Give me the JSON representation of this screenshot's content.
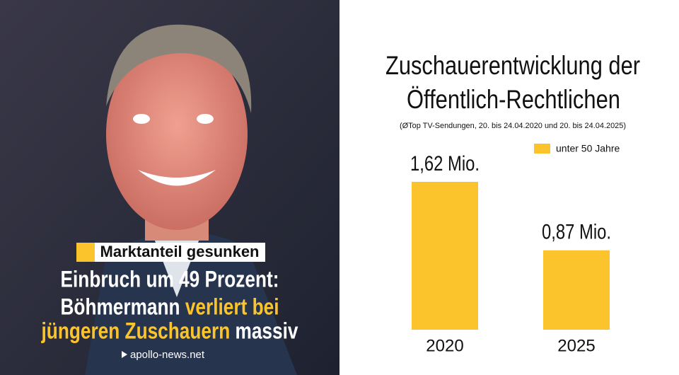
{
  "left_panel": {
    "badge": "Marktanteil gesunken",
    "headline": [
      [
        {
          "text": "Einbruch um 49 Prozent:",
          "highlight": false
        }
      ],
      [
        {
          "text": "Böhmermann ",
          "highlight": false
        },
        {
          "text": "verliert bei",
          "highlight": true
        }
      ],
      [
        {
          "text": "jüngeren Zuschauern",
          "highlight": true
        },
        {
          "text": " massiv",
          "highlight": false
        }
      ]
    ],
    "source": "apollo-news.net"
  },
  "chart_data": {
    "type": "bar",
    "title": [
      "Zuschauerentwicklung der",
      "Öffentlich-Rechtlichen"
    ],
    "subtitle": "(ØTop TV-Sendungen, 20. bis 24.04.2020 und 20. bis 24.04.2025)",
    "categories": [
      "2020",
      "2025"
    ],
    "series": [
      {
        "name": "unter 50 Jahre",
        "color": "#fcc42c",
        "values": [
          1.62,
          0.87
        ],
        "value_labels": [
          "1,62 Mio.",
          "0,87 Mio."
        ]
      }
    ]
  }
}
